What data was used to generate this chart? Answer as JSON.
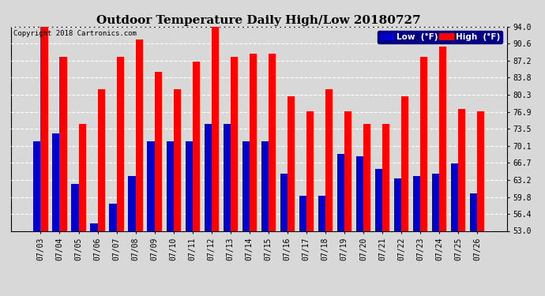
{
  "title": "Outdoor Temperature Daily High/Low 20180727",
  "copyright": "Copyright 2018 Cartronics.com",
  "dates": [
    "07/03",
    "07/04",
    "07/05",
    "07/06",
    "07/07",
    "07/08",
    "07/09",
    "07/10",
    "07/11",
    "07/12",
    "07/13",
    "07/14",
    "07/15",
    "07/16",
    "07/17",
    "07/18",
    "07/19",
    "07/20",
    "07/21",
    "07/22",
    "07/23",
    "07/24",
    "07/25",
    "07/26"
  ],
  "highs": [
    94.0,
    88.0,
    74.5,
    81.5,
    88.0,
    91.5,
    85.0,
    81.5,
    87.0,
    94.5,
    88.0,
    88.5,
    88.5,
    80.0,
    77.0,
    81.5,
    77.0,
    74.5,
    74.5,
    80.0,
    88.0,
    90.0,
    77.5,
    77.0
  ],
  "lows": [
    71.0,
    72.5,
    62.5,
    54.5,
    58.5,
    64.0,
    71.0,
    71.0,
    71.0,
    74.5,
    74.5,
    71.0,
    71.0,
    64.5,
    60.0,
    60.0,
    68.5,
    68.0,
    65.5,
    63.5,
    64.0,
    64.5,
    66.5,
    60.5
  ],
  "ylim_min": 53.0,
  "ylim_max": 94.0,
  "yticks": [
    53.0,
    56.4,
    59.8,
    63.2,
    66.7,
    70.1,
    73.5,
    76.9,
    80.3,
    83.8,
    87.2,
    90.6,
    94.0
  ],
  "bar_width": 0.38,
  "high_color": "#ff0000",
  "low_color": "#0000cc",
  "bg_color": "#d8d8d8",
  "plot_bg_color": "#d8d8d8",
  "grid_color": "white",
  "title_fontsize": 11,
  "tick_fontsize": 7,
  "legend_low_label": "Low  (°F)",
  "legend_high_label": "High  (°F)"
}
